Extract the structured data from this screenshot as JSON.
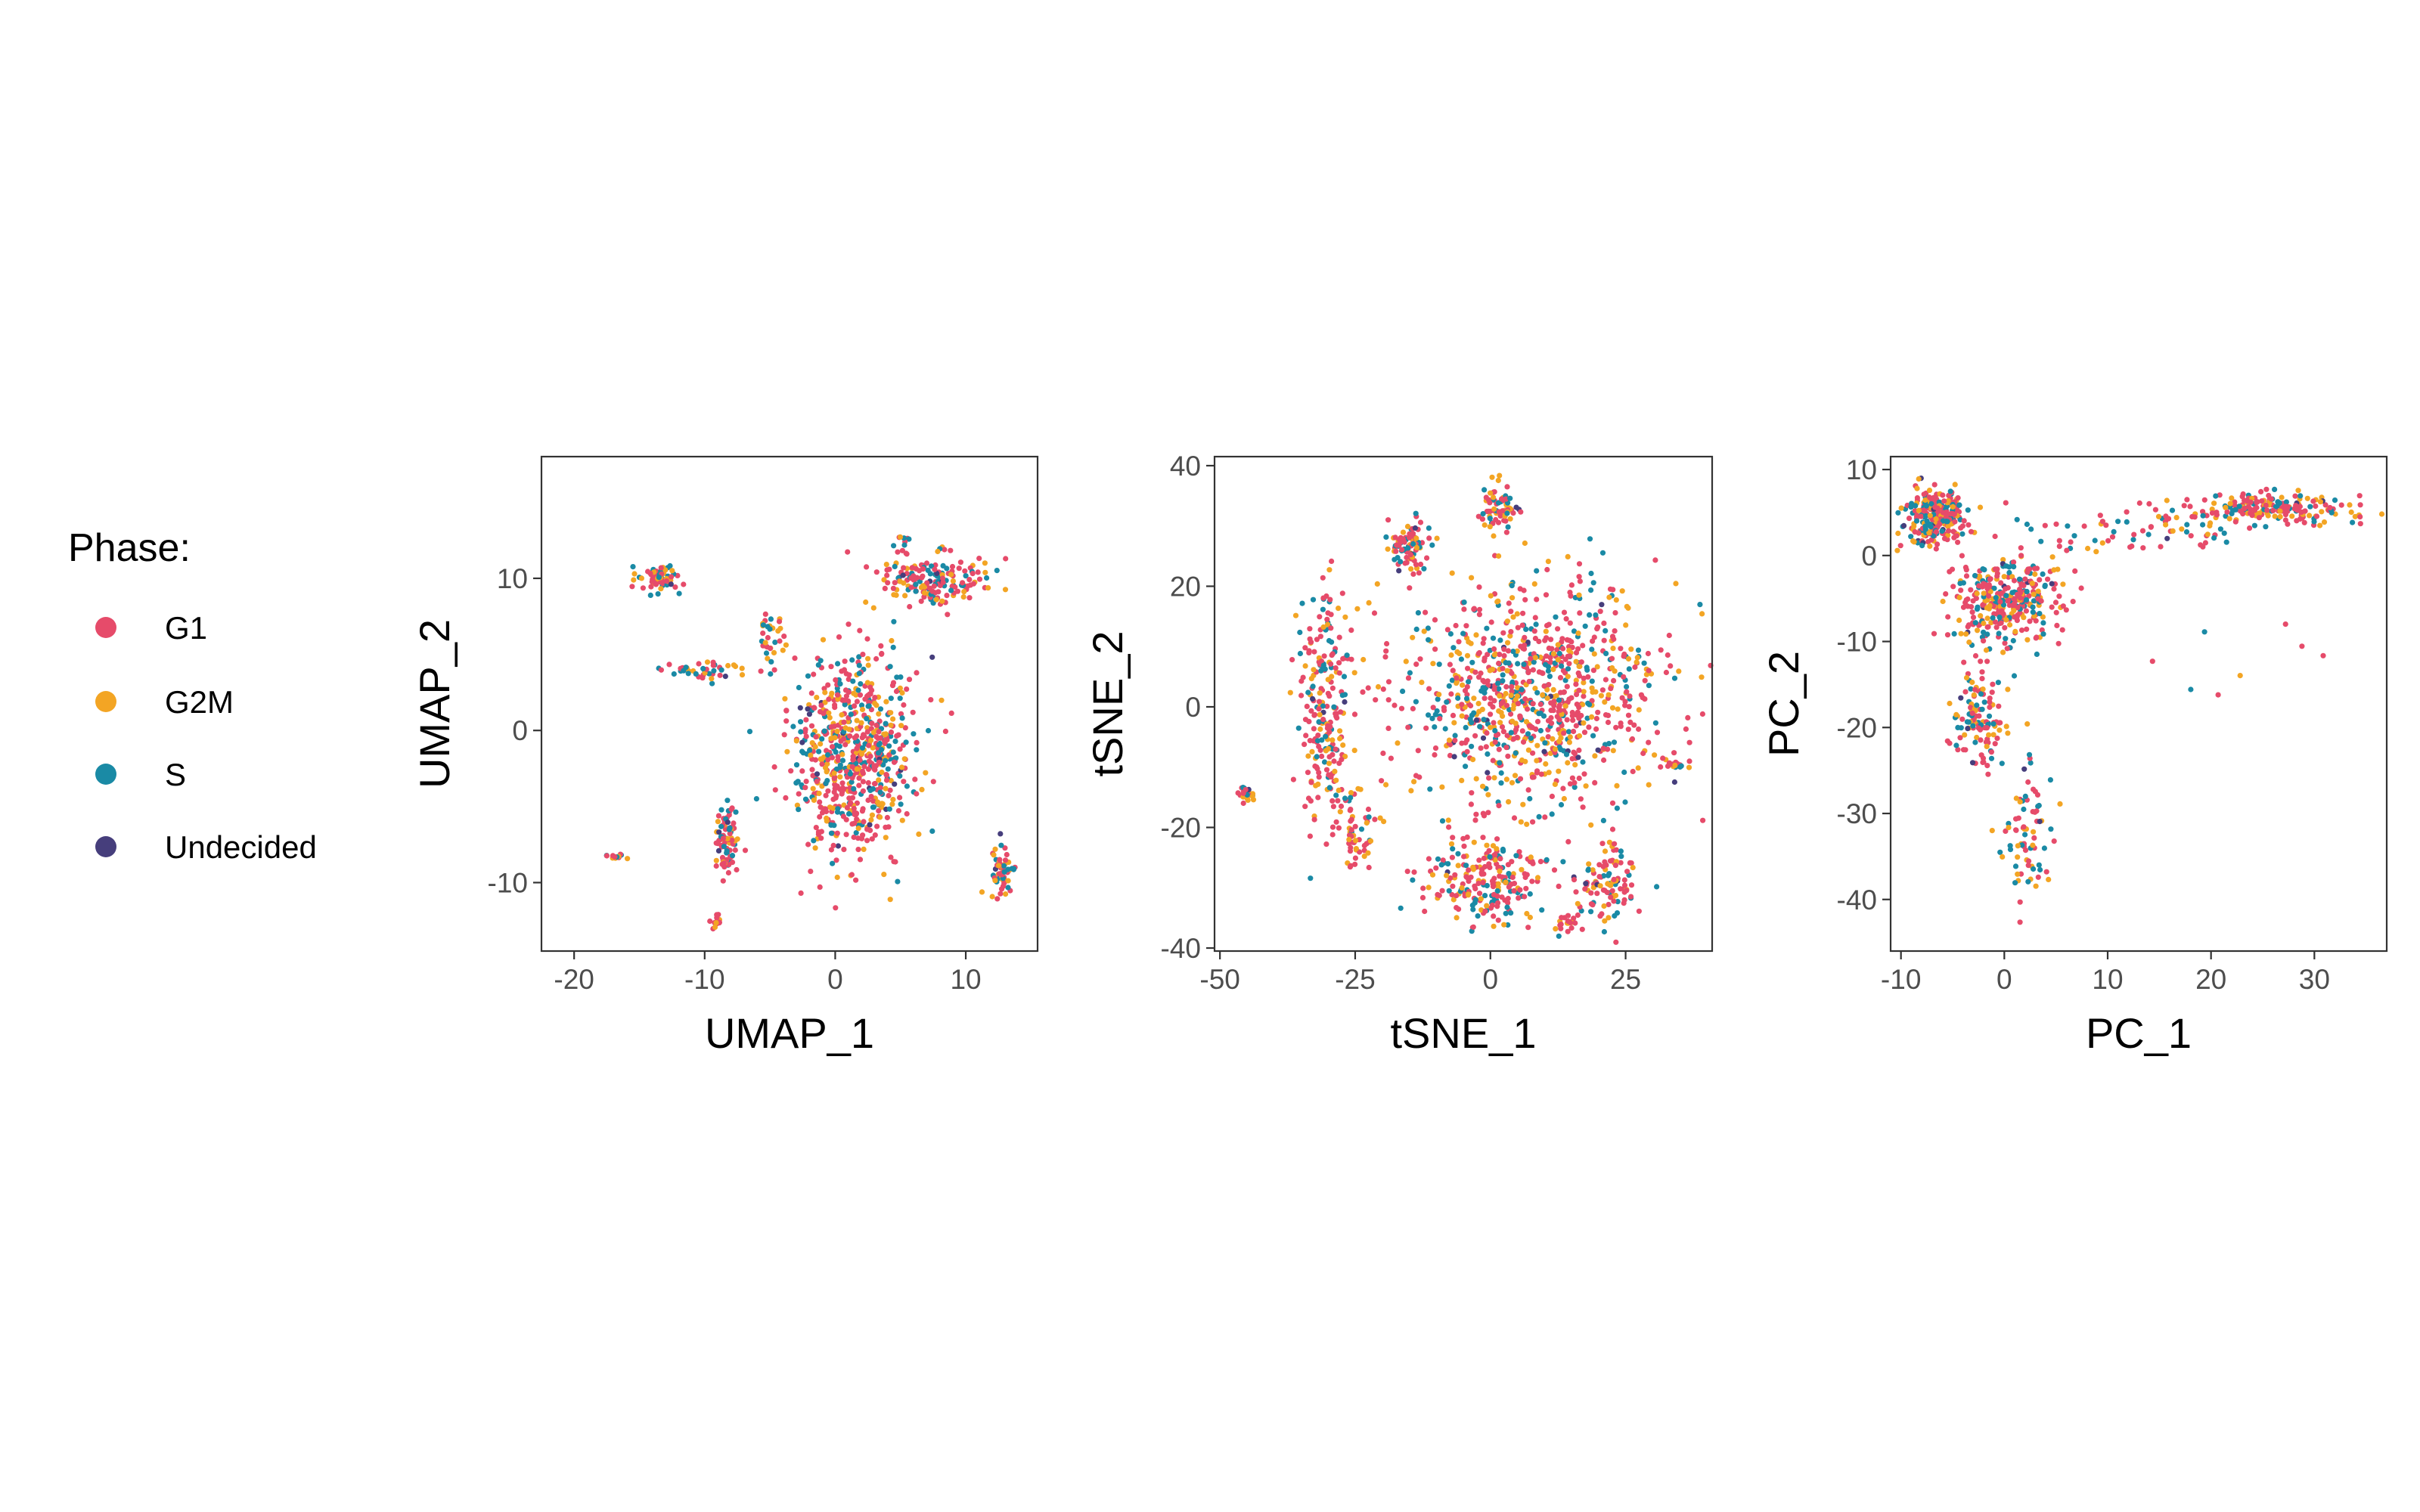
{
  "legend": {
    "title": "Phase:",
    "entries": [
      {
        "label": "G1",
        "color": "#e64b6a"
      },
      {
        "label": "G2M",
        "color": "#f3a524"
      },
      {
        "label": "S",
        "color": "#1a8aa5"
      },
      {
        "label": "Undecided",
        "color": "#463e7c"
      }
    ],
    "placement": "left"
  },
  "chart_data": [
    {
      "type": "scatter",
      "title": "",
      "xlabel": "UMAP_1",
      "ylabel": "UMAP_2",
      "xlim": [
        -22.5,
        15.5
      ],
      "ylim": [
        -14.5,
        18
      ],
      "xticks": [
        -20,
        -10,
        0,
        10
      ],
      "yticks": [
        -10,
        0,
        10
      ],
      "grid": false,
      "clusters": [
        {
          "cx": 1.5,
          "cy": -1.5,
          "sx": 2.3,
          "sy": 3.4,
          "n": 700
        },
        {
          "cx": 7.5,
          "cy": 9.8,
          "sx": 1.9,
          "sy": 0.8,
          "n": 170
        },
        {
          "cx": -13.5,
          "cy": 10.0,
          "sx": 0.9,
          "sy": 0.45,
          "n": 70
        },
        {
          "cx": -8.2,
          "cy": -7.0,
          "sx": 0.45,
          "sy": 1.2,
          "n": 90
        },
        {
          "cx": 12.8,
          "cy": -9.3,
          "sx": 0.45,
          "sy": 0.8,
          "n": 60
        },
        {
          "cx": -10.5,
          "cy": 4.0,
          "sx": 1.9,
          "sy": 0.3,
          "n": 40
        },
        {
          "cx": -5.0,
          "cy": 6.0,
          "sx": 0.5,
          "sy": 1.0,
          "n": 35
        },
        {
          "cx": -8.9,
          "cy": -12.5,
          "sx": 0.25,
          "sy": 0.3,
          "n": 15
        },
        {
          "cx": -17.0,
          "cy": -8.3,
          "sx": 0.4,
          "sy": 0.15,
          "n": 12
        },
        {
          "cx": 5.3,
          "cy": 12.5,
          "sx": 0.2,
          "sy": 0.4,
          "n": 12
        }
      ]
    },
    {
      "type": "scatter",
      "title": "",
      "xlabel": "tSNE_1",
      "ylabel": "tSNE_2",
      "xlim": [
        -51,
        41
      ],
      "ylim": [
        -40.5,
        41.5
      ],
      "xticks": [
        -50,
        -25,
        0,
        25
      ],
      "yticks": [
        -40,
        -20,
        0,
        20,
        40
      ],
      "grid": false,
      "clusters": [
        {
          "cx": 8,
          "cy": 2,
          "sx": 12,
          "sy": 9,
          "n": 900
        },
        {
          "cx": 0,
          "cy": -29,
          "sx": 5.5,
          "sy": 3.5,
          "n": 220
        },
        {
          "cx": 22,
          "cy": -29,
          "sx": 3,
          "sy": 3,
          "n": 110
        },
        {
          "cx": -31,
          "cy": 0,
          "sx": 2.5,
          "sy": 10,
          "n": 230
        },
        {
          "cx": -25,
          "cy": -20,
          "sx": 2,
          "sy": 4,
          "n": 60
        },
        {
          "cx": -15,
          "cy": 27,
          "sx": 2,
          "sy": 2,
          "n": 90
        },
        {
          "cx": 2,
          "cy": 33,
          "sx": 1.8,
          "sy": 2,
          "n": 70
        },
        {
          "cx": -45,
          "cy": -14.5,
          "sx": 0.9,
          "sy": 0.6,
          "n": 25
        },
        {
          "cx": 34,
          "cy": -9.5,
          "sx": 1.3,
          "sy": 0.4,
          "n": 20
        },
        {
          "cx": 14,
          "cy": -36,
          "sx": 1.5,
          "sy": 0.8,
          "n": 20
        }
      ]
    },
    {
      "type": "scatter",
      "title": "",
      "xlabel": "PC_1",
      "ylabel": "PC_2",
      "xlim": [
        -11,
        37
      ],
      "ylim": [
        -46,
        11.5
      ],
      "xticks": [
        -10,
        0,
        10,
        20,
        30
      ],
      "yticks": [
        10,
        0,
        -10,
        -20,
        -30,
        -40
      ],
      "grid": false,
      "clusters": [
        {
          "cx": -6.5,
          "cy": 4.5,
          "sx": 1.4,
          "sy": 1.6,
          "n": 260
        },
        {
          "cx": 0,
          "cy": -5.5,
          "sx": 2.5,
          "sy": 2.5,
          "n": 330
        },
        {
          "cx": 26,
          "cy": 5.5,
          "sx": 4.5,
          "sy": 0.9,
          "n": 200
        },
        {
          "cx": 13,
          "cy": 2.5,
          "sx": 6.5,
          "sy": 1.8,
          "n": 70
        },
        {
          "cx": -2.5,
          "cy": -19,
          "sx": 1.2,
          "sy": 3,
          "n": 120
        },
        {
          "cx": 2,
          "cy": -33,
          "sx": 1.3,
          "sy": 4.5,
          "n": 80
        },
        {
          "cx": 23,
          "cy": -12,
          "sx": 5,
          "sy": 5,
          "n": 8
        }
      ]
    }
  ]
}
